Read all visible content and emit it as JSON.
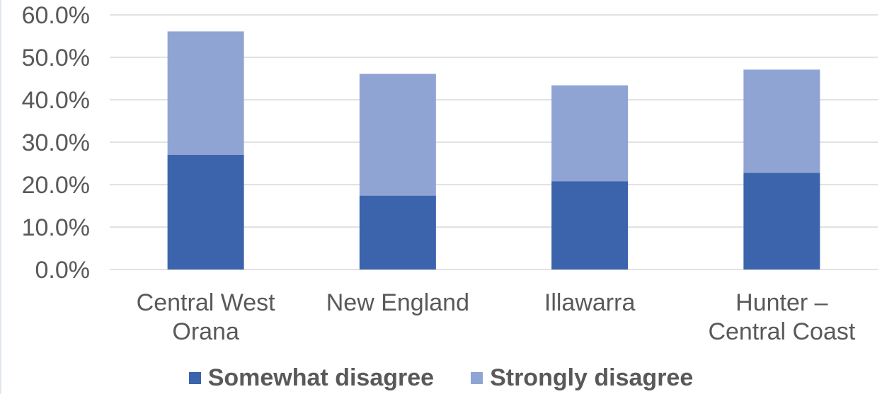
{
  "chart_data": {
    "type": "bar",
    "stacked": true,
    "categories": [
      [
        "Central West",
        "Orana"
      ],
      [
        "New England"
      ],
      [
        "Illawarra"
      ],
      [
        "Hunter –",
        "Central Coast"
      ]
    ],
    "series": [
      {
        "name": "Somewhat disagree",
        "values": [
          27.0,
          17.4,
          20.8,
          22.8
        ],
        "color": "#3b64ad"
      },
      {
        "name": "Strongly disagree",
        "values": [
          29.1,
          28.7,
          22.6,
          24.3
        ],
        "color": "#90a4d4"
      }
    ],
    "y_ticks": [
      "0.0%",
      "10.0%",
      "20.0%",
      "30.0%",
      "40.0%",
      "50.0%",
      "60.0%"
    ],
    "ylim": [
      0,
      60
    ],
    "y_unit": "%",
    "grid": true,
    "legend_position": "bottom"
  }
}
